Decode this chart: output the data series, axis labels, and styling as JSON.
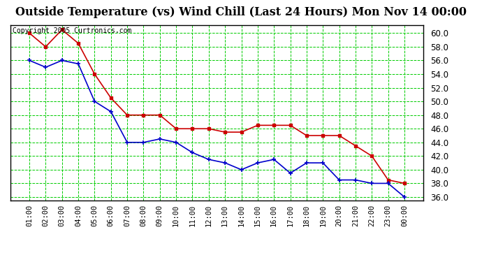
{
  "title": "Outside Temperature (vs) Wind Chill (Last 24 Hours) Mon Nov 14 00:00",
  "copyright": "Copyright 2005 Curtronics.com",
  "x_labels": [
    "01:00",
    "02:00",
    "03:00",
    "04:00",
    "05:00",
    "06:00",
    "07:00",
    "08:00",
    "09:00",
    "10:00",
    "11:00",
    "12:00",
    "13:00",
    "14:00",
    "15:00",
    "16:00",
    "17:00",
    "18:00",
    "19:00",
    "20:00",
    "21:00",
    "22:00",
    "23:00",
    "00:00"
  ],
  "temp_red": [
    60.0,
    58.0,
    60.5,
    58.5,
    54.0,
    50.5,
    48.0,
    48.0,
    48.0,
    46.0,
    46.0,
    46.0,
    45.5,
    45.5,
    46.5,
    46.5,
    46.5,
    45.0,
    45.0,
    45.0,
    43.5,
    42.0,
    38.5,
    38.0
  ],
  "temp_blue": [
    56.0,
    55.0,
    56.0,
    55.5,
    50.0,
    48.5,
    44.0,
    44.0,
    44.5,
    44.0,
    42.5,
    41.5,
    41.0,
    40.0,
    41.0,
    41.5,
    39.5,
    41.0,
    41.0,
    38.5,
    38.5,
    38.0,
    38.0,
    36.0
  ],
  "ylim_min": 35.5,
  "ylim_max": 61.2,
  "yticks": [
    36.0,
    38.0,
    40.0,
    42.0,
    44.0,
    46.0,
    48.0,
    50.0,
    52.0,
    54.0,
    56.0,
    58.0,
    60.0
  ],
  "bg_color": "#ffffff",
  "grid_color": "#00cc00",
  "red_color": "#cc0000",
  "blue_color": "#0000cc",
  "title_fontsize": 11.5,
  "copyright_fontsize": 7,
  "tick_fontsize": 7.5,
  "ytick_fontsize": 8.5
}
